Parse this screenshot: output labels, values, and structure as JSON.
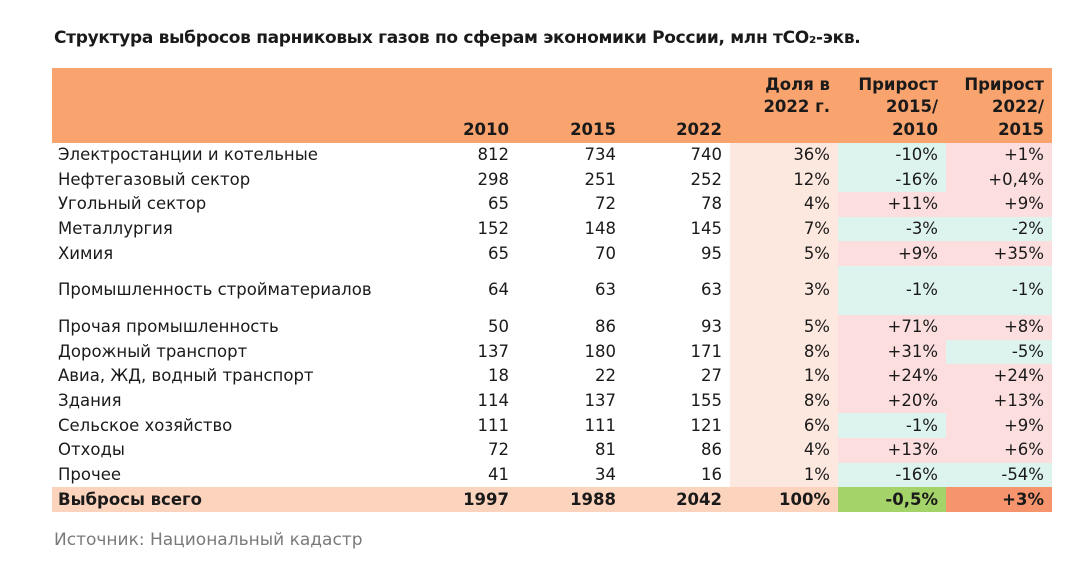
{
  "title": "Структура выбросов парниковых газов по сферам экономики России, млн тCO₂-экв.",
  "source": "Источник: Национальный кадастр",
  "colors": {
    "header": "#F9A36E",
    "share_bg": "#FDE8DF",
    "decrease": "#DDF3EE",
    "increase": "#FCDEDE",
    "total": "#FCD3BD",
    "total_g1": "#A4D36A",
    "total_g2": "#F6946E"
  },
  "chart_data": {
    "type": "table",
    "title": "Структура выбросов парниковых газов по сферам экономики России, млн тCO₂-экв.",
    "columns": [
      "",
      "2010",
      "2015",
      "2022",
      "Доля в 2022 г.",
      "Прирост 2015/ 2010",
      "Прирост 2022/ 2015"
    ],
    "header": {
      "c1": "2010",
      "c2": "2015",
      "c3": "2022",
      "share_1": "Доля в",
      "share_2": "2022 г.",
      "g1_1": "Прирост",
      "g1_2": "2015/",
      "g1_3": "2010",
      "g2_1": "Прирост",
      "g2_2": "2022/",
      "g2_3": "2015"
    },
    "rows": [
      {
        "label": "Электростанции и котельные",
        "v2010": "812",
        "v2015": "734",
        "v2022": "740",
        "share": "36%",
        "g1": "-10%",
        "g2": "+1%"
      },
      {
        "label": "Нефтегазовый сектор",
        "v2010": "298",
        "v2015": "251",
        "v2022": "252",
        "share": "12%",
        "g1": "-16%",
        "g2": "+0,4%"
      },
      {
        "label": "Угольный сектор",
        "v2010": "65",
        "v2015": "72",
        "v2022": "78",
        "share": "4%",
        "g1": "+11%",
        "g2": "+9%"
      },
      {
        "label": "Металлургия",
        "v2010": "152",
        "v2015": "148",
        "v2022": "145",
        "share": "7%",
        "g1": "-3%",
        "g2": "-2%"
      },
      {
        "label": "Химия",
        "v2010": "65",
        "v2015": "70",
        "v2022": "95",
        "share": "5%",
        "g1": "+9%",
        "g2": "+35%"
      },
      {
        "label": "Промышленность стройматериалов",
        "v2010": "64",
        "v2015": "63",
        "v2022": "63",
        "share": "3%",
        "g1": "-1%",
        "g2": "-1%"
      },
      {
        "label": "Прочая промышленность",
        "v2010": "50",
        "v2015": "86",
        "v2022": "93",
        "share": "5%",
        "g1": "+71%",
        "g2": "+8%"
      },
      {
        "label": "Дорожный транспорт",
        "v2010": "137",
        "v2015": "180",
        "v2022": "171",
        "share": "8%",
        "g1": "+31%",
        "g2": "-5%"
      },
      {
        "label": "Авиа, ЖД, водный транспорт",
        "v2010": "18",
        "v2015": "22",
        "v2022": "27",
        "share": "1%",
        "g1": "+24%",
        "g2": "+24%"
      },
      {
        "label": "Здания",
        "v2010": "114",
        "v2015": "137",
        "v2022": "155",
        "share": "8%",
        "g1": "+20%",
        "g2": "+13%"
      },
      {
        "label": "Сельское хозяйство",
        "v2010": "111",
        "v2015": "111",
        "v2022": "121",
        "share": "6%",
        "g1": "-1%",
        "g2": "+9%"
      },
      {
        "label": "Отходы",
        "v2010": "72",
        "v2015": "81",
        "v2022": "86",
        "share": "4%",
        "g1": "+13%",
        "g2": "+6%"
      },
      {
        "label": "Прочее",
        "v2010": "41",
        "v2015": "34",
        "v2022": "16",
        "share": "1%",
        "g1": "-16%",
        "g2": "-54%"
      }
    ],
    "total": {
      "label": "Выбросы всего",
      "v2010": "1997",
      "v2015": "1988",
      "v2022": "2042",
      "share": "100%",
      "g1": "-0,5%",
      "g2": "+3%"
    }
  }
}
